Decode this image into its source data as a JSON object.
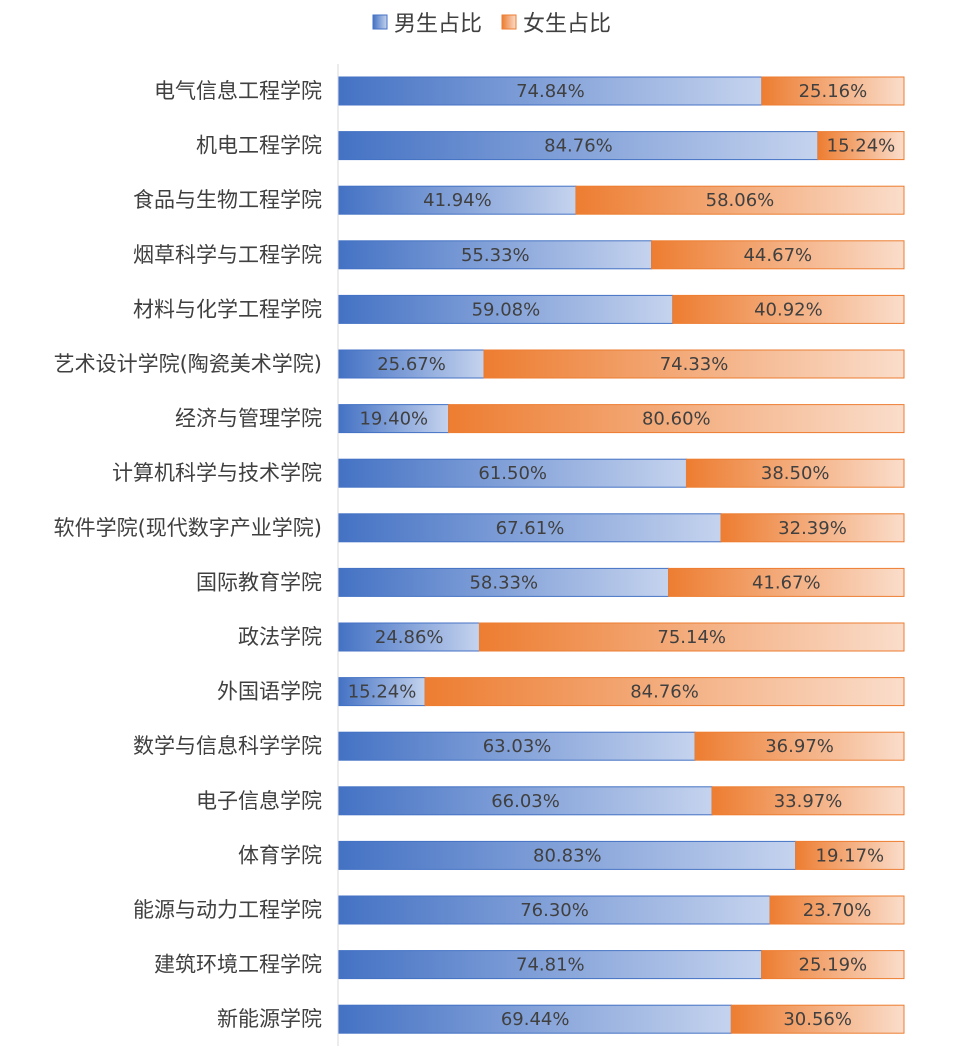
{
  "chart_data": {
    "type": "bar",
    "orientation": "horizontal",
    "stacked": "percent",
    "title": "",
    "xlabel": "",
    "ylabel": "",
    "xlim": [
      0,
      100
    ],
    "grid": false,
    "legend_position": "top",
    "categories": [
      "电气信息工程学院",
      "机电工程学院",
      "食品与生物工程学院",
      "烟草科学与工程学院",
      "材料与化学工程学院",
      "艺术设计学院(陶瓷美术学院)",
      "经济与管理学院",
      "计算机科学与技术学院",
      "软件学院(现代数字产业学院)",
      "国际教育学院",
      "政法学院",
      "外国语学院",
      "数学与信息科学学院",
      "电子信息学院",
      "体育学院",
      "能源与动力工程学院",
      "建筑环境工程学院",
      "新能源学院"
    ],
    "series": [
      {
        "name": "男生占比",
        "color": "#4472C4",
        "values": [
          74.84,
          84.76,
          41.94,
          55.33,
          59.08,
          25.67,
          19.4,
          61.5,
          67.61,
          58.33,
          24.86,
          15.24,
          63.03,
          66.03,
          80.83,
          76.3,
          74.81,
          69.44
        ],
        "labels": [
          "74.84%",
          "84.76%",
          "41.94%",
          "55.33%",
          "59.08%",
          "25.67%",
          "19.40%",
          "61.50%",
          "67.61%",
          "58.33%",
          "24.86%",
          "15.24%",
          "63.03%",
          "66.03%",
          "80.83%",
          "76.30%",
          "74.81%",
          "69.44%"
        ]
      },
      {
        "name": "女生占比",
        "color": "#ED7D31",
        "values": [
          25.16,
          15.24,
          58.06,
          44.67,
          40.92,
          74.33,
          80.6,
          38.5,
          32.39,
          41.67,
          75.14,
          84.76,
          36.97,
          33.97,
          19.17,
          23.7,
          25.19,
          30.56
        ],
        "labels": [
          "25.16%",
          "15.24%",
          "58.06%",
          "44.67%",
          "40.92%",
          "74.33%",
          "80.60%",
          "38.50%",
          "32.39%",
          "41.67%",
          "75.14%",
          "84.76%",
          "36.97%",
          "33.97%",
          "19.17%",
          "23.70%",
          "25.19%",
          "30.56%"
        ]
      }
    ]
  }
}
